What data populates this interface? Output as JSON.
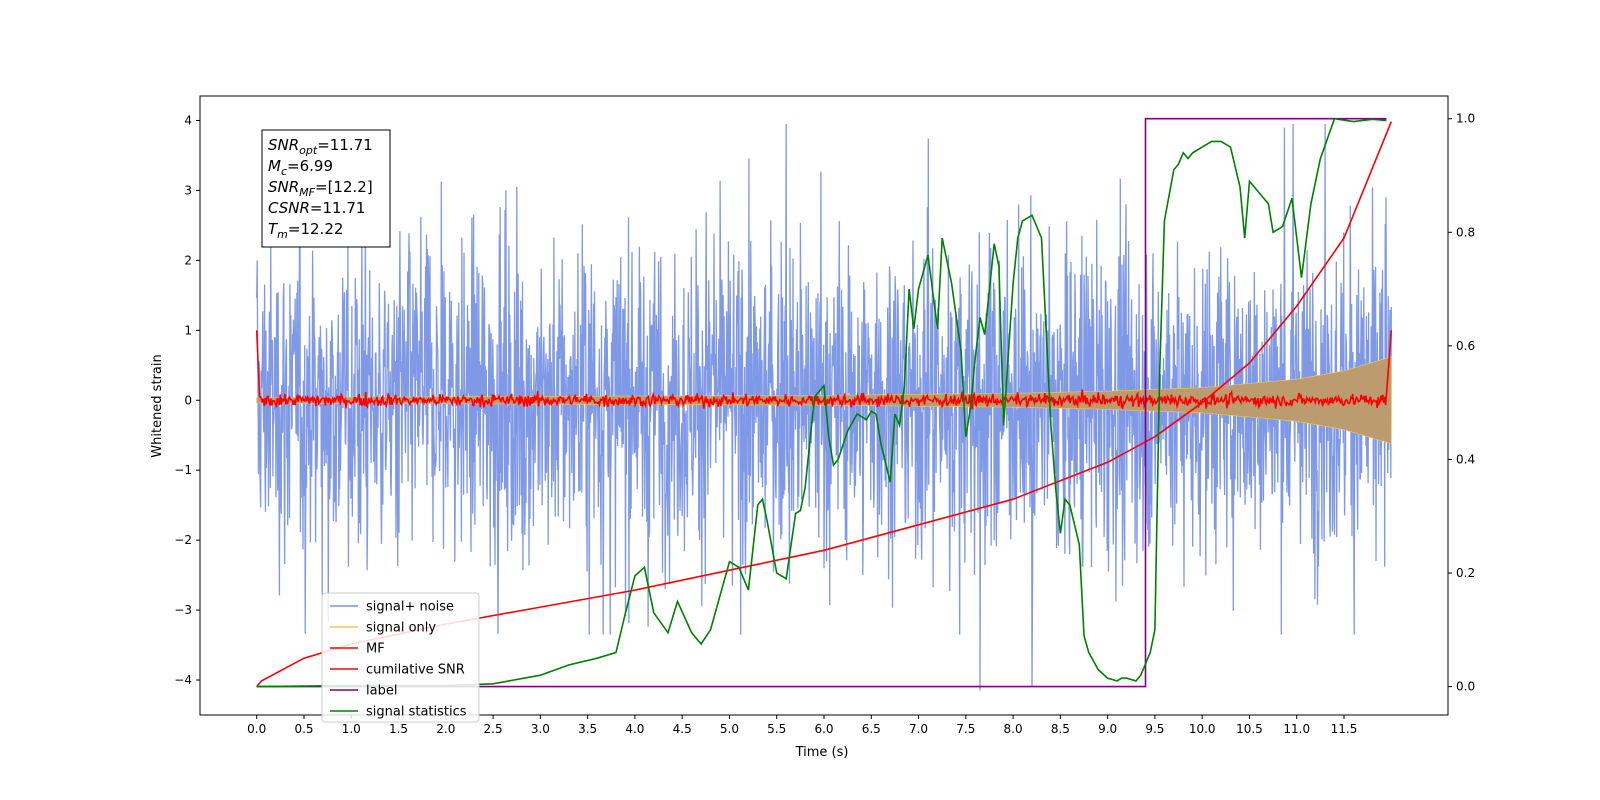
{
  "chart_data": {
    "type": "line",
    "xlabel": "Time (s)",
    "ylabel": "Whitened strain",
    "xlim": [
      -0.6,
      12.6
    ],
    "ylim": [
      -4.5,
      4.35
    ],
    "y2lim": [
      -0.05,
      1.04
    ],
    "x_ticks": [
      "0.0",
      "0.5",
      "1.0",
      "1.5",
      "2.0",
      "2.5",
      "3.0",
      "3.5",
      "4.0",
      "4.5",
      "5.0",
      "5.5",
      "6.0",
      "6.5",
      "7.0",
      "7.5",
      "8.0",
      "8.5",
      "9.0",
      "9.5",
      "10.0",
      "10.5",
      "11.0",
      "11.5"
    ],
    "y_ticks": [
      "4",
      "3",
      "2",
      "1",
      "0",
      "−1",
      "−2",
      "−3",
      "−4"
    ],
    "y2_ticks": [
      "1.0",
      "0.8",
      "0.6",
      "0.4",
      "0.2",
      "0.0"
    ],
    "grid": false,
    "legend_position": "lower-left",
    "info_box": [
      {
        "sym": "SNR",
        "sub": "opt",
        "value": "=11.71"
      },
      {
        "sym": "M",
        "sub": "c",
        "value": "=6.99"
      },
      {
        "sym": "SNR",
        "sub": "MF",
        "value": "=[12.2]"
      },
      {
        "sym": "CSNR",
        "sub": "",
        "value": "=11.71"
      },
      {
        "sym": "T",
        "sub": "m",
        "value": "=12.22"
      }
    ],
    "series": [
      {
        "name": "signal+ noise",
        "color": "#7893e6",
        "axis": "left",
        "description": "dense noise, approximately gaussian with sigma ~1.1, peaks near ±3.9, dips to -4.15 at t=7.65 and t=8.2",
        "x_range": [
          0,
          12.0
        ],
        "envelope_plus_minus": 1.1,
        "extremes": [
          {
            "x": 7.65,
            "y": -4.15
          },
          {
            "x": 8.2,
            "y": -4.1
          },
          {
            "x": 5.6,
            "y": 3.95
          },
          {
            "x": 11.3,
            "y": 3.95
          }
        ]
      },
      {
        "name": "signal only",
        "color": "#f5c65c",
        "axis": "left",
        "description": "chirp whose amplitude grows with time",
        "amplitude": [
          [
            0,
            0.04
          ],
          [
            6.0,
            0.07
          ],
          [
            8.0,
            0.1
          ],
          [
            9.0,
            0.13
          ],
          [
            10.0,
            0.18
          ],
          [
            11.0,
            0.3
          ],
          [
            11.5,
            0.42
          ],
          [
            12.0,
            0.62
          ]
        ]
      },
      {
        "name": "MF",
        "color": "#ff0000",
        "axis": "left",
        "description": "matched filter output, noise ~±0.1 around 0, starts at 1.0",
        "start": [
          0,
          1.0
        ],
        "end": [
          12.0,
          1.0
        ]
      },
      {
        "name": "cumilative SNR",
        "color": "#ff0000",
        "axis": "right",
        "x": [
          0,
          0.05,
          0.5,
          1.0,
          2.0,
          3.0,
          4.0,
          5.0,
          6.0,
          7.0,
          8.0,
          9.0,
          9.5,
          10.0,
          10.5,
          11.0,
          11.5,
          12.0
        ],
        "y": [
          0.0,
          0.01,
          0.05,
          0.075,
          0.11,
          0.14,
          0.17,
          0.205,
          0.24,
          0.285,
          0.33,
          0.395,
          0.44,
          0.5,
          0.57,
          0.67,
          0.79,
          0.995
        ]
      },
      {
        "name": "label",
        "color": "#800080",
        "axis": "right",
        "x": [
          0,
          9.4,
          9.4,
          11.95
        ],
        "y": [
          0.0,
          0.0,
          1.0,
          1.0
        ]
      },
      {
        "name": "signal statistics",
        "color": "#008000",
        "axis": "right",
        "x": [
          0,
          1,
          2,
          2.5,
          3.0,
          3.3,
          3.6,
          3.8,
          3.9,
          4.0,
          4.1,
          4.2,
          4.35,
          4.45,
          4.6,
          4.7,
          4.8,
          5.0,
          5.1,
          5.2,
          5.3,
          5.35,
          5.4,
          5.5,
          5.6,
          5.7,
          5.75,
          5.8,
          5.9,
          6.0,
          6.05,
          6.1,
          6.15,
          6.25,
          6.35,
          6.45,
          6.5,
          6.55,
          6.6,
          6.7,
          6.75,
          6.8,
          6.85,
          6.9,
          6.95,
          7.0,
          7.1,
          7.2,
          7.25,
          7.35,
          7.45,
          7.5,
          7.55,
          7.6,
          7.65,
          7.7,
          7.75,
          7.8,
          7.85,
          7.9,
          8.0,
          8.05,
          8.1,
          8.2,
          8.3,
          8.4,
          8.45,
          8.5,
          8.55,
          8.6,
          8.7,
          8.75,
          8.8,
          8.9,
          9.0,
          9.1,
          9.15,
          9.2,
          9.3,
          9.35,
          9.4,
          9.45,
          9.5,
          9.55,
          9.6,
          9.7,
          9.75,
          9.8,
          9.85,
          9.9,
          10.0,
          10.1,
          10.2,
          10.3,
          10.4,
          10.45,
          10.5,
          10.6,
          10.7,
          10.75,
          10.85,
          10.95,
          11.05,
          11.15,
          11.25,
          11.4,
          11.6,
          11.8,
          11.95
        ],
        "y": [
          0.0,
          0.002,
          0.002,
          0.005,
          0.02,
          0.038,
          0.05,
          0.06,
          0.13,
          0.195,
          0.21,
          0.13,
          0.095,
          0.15,
          0.095,
          0.075,
          0.1,
          0.22,
          0.21,
          0.17,
          0.32,
          0.33,
          0.29,
          0.2,
          0.19,
          0.305,
          0.31,
          0.35,
          0.51,
          0.53,
          0.44,
          0.39,
          0.4,
          0.45,
          0.48,
          0.47,
          0.485,
          0.48,
          0.43,
          0.36,
          0.48,
          0.46,
          0.53,
          0.7,
          0.63,
          0.7,
          0.76,
          0.63,
          0.79,
          0.71,
          0.59,
          0.44,
          0.49,
          0.58,
          0.65,
          0.62,
          0.7,
          0.78,
          0.74,
          0.46,
          0.71,
          0.79,
          0.82,
          0.83,
          0.79,
          0.46,
          0.35,
          0.27,
          0.33,
          0.32,
          0.25,
          0.09,
          0.06,
          0.03,
          0.015,
          0.01,
          0.015,
          0.015,
          0.01,
          0.02,
          0.04,
          0.06,
          0.1,
          0.55,
          0.82,
          0.91,
          0.92,
          0.94,
          0.93,
          0.94,
          0.95,
          0.96,
          0.96,
          0.95,
          0.88,
          0.79,
          0.89,
          0.87,
          0.85,
          0.8,
          0.81,
          0.86,
          0.72,
          0.85,
          0.93,
          1.0,
          0.995,
          0.999,
          0.997
        ]
      }
    ]
  }
}
